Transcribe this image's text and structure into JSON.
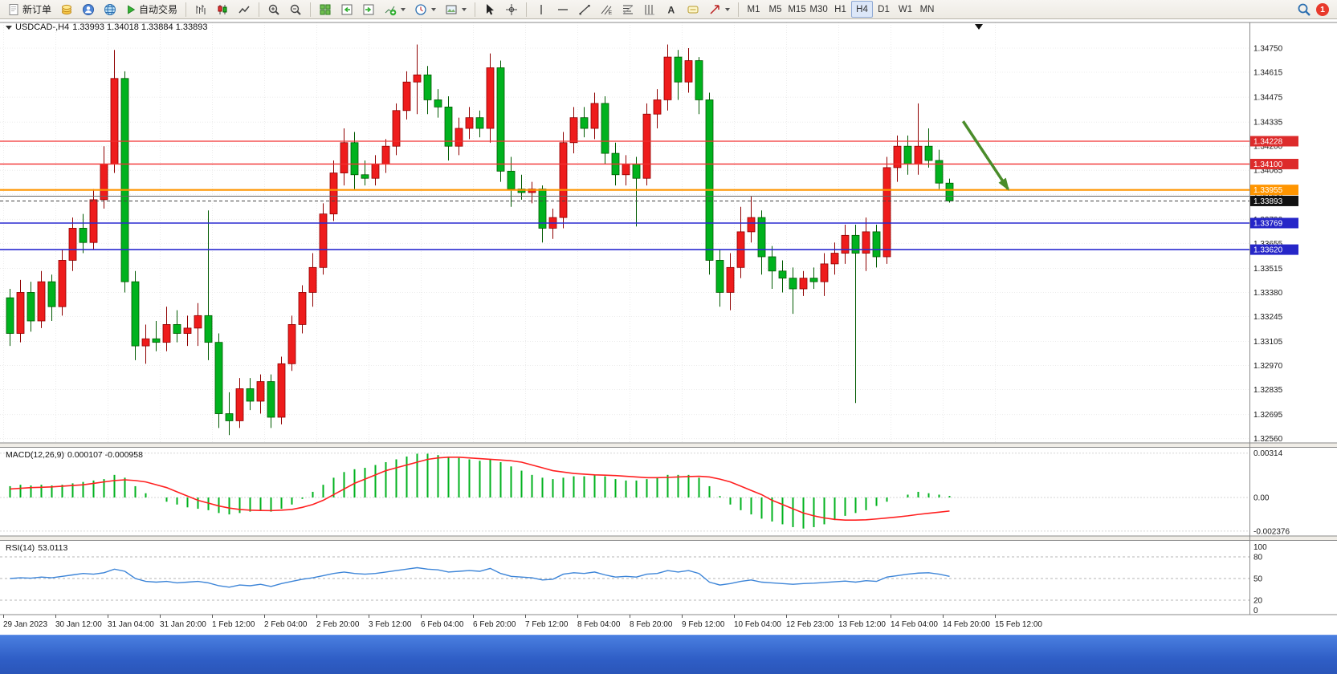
{
  "toolbar": {
    "new_order": "新订单",
    "autotrading": "自动交易",
    "timeframes": [
      "M1",
      "M5",
      "M15",
      "M30",
      "H1",
      "H4",
      "D1",
      "W1",
      "MN"
    ],
    "active_timeframe": "H4",
    "notification_badge": "1"
  },
  "chart_header": {
    "symbol_period": "USDCAD-,H4",
    "ohlc": "1.33993 1.34018 1.33884 1.33893"
  },
  "indicators": {
    "macd_label": "MACD(12,26,9)",
    "macd_values": "0.000107 -0.000958",
    "rsi_label": "RSI(14)",
    "rsi_value": "53.0113"
  },
  "chart_data": [
    {
      "type": "candlestick",
      "title": "USDCAD-,H4",
      "ohlc_quote": {
        "open": "1.33993",
        "high": "1.34018",
        "low": "1.33884",
        "close": "1.33893"
      },
      "colors": {
        "up": "#ee1c1c",
        "up_border": "#8f0000",
        "down": "#00b21e",
        "down_border": "#005a00",
        "grid": "#ececec",
        "axis_text": "#1a1a1a"
      },
      "y_axis": {
        "labels": [
          "1.34750",
          "1.34615",
          "1.34475",
          "1.34335",
          "1.34200",
          "1.34065",
          "1.33930",
          "1.33790",
          "1.33655",
          "1.33515",
          "1.33380",
          "1.33245",
          "1.33105",
          "1.32970",
          "1.32835",
          "1.32695",
          "1.32560"
        ]
      },
      "x_axis": {
        "labels": [
          "29 Jan 2023",
          "30 Jan 12:00",
          "31 Jan 04:00",
          "31 Jan 20:00",
          "1 Feb 12:00",
          "2 Feb 04:00",
          "2 Feb 20:00",
          "3 Feb 12:00",
          "6 Feb 04:00",
          "6 Feb 20:00",
          "7 Feb 12:00",
          "8 Feb 04:00",
          "8 Feb 20:00",
          "9 Feb 12:00",
          "10 Feb 04:00",
          "12 Feb 23:00",
          "13 Feb 12:00",
          "14 Feb 04:00",
          "14 Feb 20:00",
          "15 Feb 12:00"
        ]
      },
      "h_lines": [
        {
          "price": 1.34228,
          "color": "#f23030",
          "width": 1.3,
          "label": "1.34228",
          "label_bg": "#dd2b2b"
        },
        {
          "price": 1.341,
          "color": "#f23030",
          "width": 1.3,
          "label": "1.34100",
          "label_bg": "#dd2b2b"
        },
        {
          "price": 1.33955,
          "color": "#ff9500",
          "width": 2.2,
          "label": "1.33955",
          "label_bg": "#ff9500"
        },
        {
          "price": 1.3392,
          "color": "#666666",
          "width": 1,
          "label": null
        },
        {
          "price": 1.33893,
          "color": "#444444",
          "width": 1,
          "dash": "4,3",
          "label": "1.33893",
          "label_bg": "#111111"
        },
        {
          "price": 1.33769,
          "color": "#2a2ad0",
          "width": 1.6,
          "label": "1.33769",
          "label_bg": "#2626c8"
        },
        {
          "price": 1.3362,
          "color": "#2a2ad0",
          "width": 1.6,
          "label": "1.33620",
          "label_bg": "#2626c8"
        }
      ],
      "annotation_arrow": {
        "x1_index": 91.3,
        "y1_price": 1.3434,
        "x2_index": 95.6,
        "y2_price": 1.3396,
        "color": "#4a8c2a",
        "width": 3.5
      },
      "candles": [
        [
          1.3335,
          1.334,
          1.3308,
          1.3315
        ],
        [
          1.3315,
          1.3345,
          1.331,
          1.3338
        ],
        [
          1.3338,
          1.3344,
          1.3316,
          1.3322
        ],
        [
          1.3322,
          1.335,
          1.3318,
          1.3344
        ],
        [
          1.3344,
          1.3348,
          1.3322,
          1.333
        ],
        [
          1.333,
          1.3362,
          1.3325,
          1.3356
        ],
        [
          1.3356,
          1.338,
          1.335,
          1.3374
        ],
        [
          1.3374,
          1.3382,
          1.336,
          1.3366
        ],
        [
          1.3366,
          1.3396,
          1.3362,
          1.339
        ],
        [
          1.339,
          1.342,
          1.3385,
          1.341
        ],
        [
          1.341,
          1.3474,
          1.3405,
          1.3458
        ],
        [
          1.3458,
          1.3462,
          1.3338,
          1.3344
        ],
        [
          1.3344,
          1.335,
          1.33,
          1.3308
        ],
        [
          1.3308,
          1.332,
          1.3298,
          1.3312
        ],
        [
          1.3312,
          1.3322,
          1.3305,
          1.331
        ],
        [
          1.331,
          1.333,
          1.3305,
          1.332
        ],
        [
          1.332,
          1.3328,
          1.331,
          1.3315
        ],
        [
          1.3315,
          1.3325,
          1.3308,
          1.3318
        ],
        [
          1.3318,
          1.3332,
          1.3308,
          1.3325
        ],
        [
          1.3325,
          1.3384,
          1.33,
          1.331
        ],
        [
          1.331,
          1.3315,
          1.3262,
          1.327
        ],
        [
          1.327,
          1.3282,
          1.3258,
          1.3266
        ],
        [
          1.3266,
          1.329,
          1.3262,
          1.3284
        ],
        [
          1.3284,
          1.329,
          1.3272,
          1.3277
        ],
        [
          1.3277,
          1.3292,
          1.327,
          1.3288
        ],
        [
          1.3288,
          1.3292,
          1.3262,
          1.3268
        ],
        [
          1.3268,
          1.3302,
          1.3264,
          1.3298
        ],
        [
          1.3298,
          1.3325,
          1.3294,
          1.332
        ],
        [
          1.332,
          1.3342,
          1.3315,
          1.3338
        ],
        [
          1.3338,
          1.336,
          1.333,
          1.3352
        ],
        [
          1.3352,
          1.3388,
          1.3348,
          1.3382
        ],
        [
          1.3382,
          1.3412,
          1.3378,
          1.3405
        ],
        [
          1.3405,
          1.343,
          1.3398,
          1.3422
        ],
        [
          1.3422,
          1.3428,
          1.3396,
          1.3404
        ],
        [
          1.3404,
          1.3412,
          1.3398,
          1.3402
        ],
        [
          1.3402,
          1.3415,
          1.3398,
          1.341
        ],
        [
          1.341,
          1.3424,
          1.3405,
          1.342
        ],
        [
          1.342,
          1.3444,
          1.3415,
          1.344
        ],
        [
          1.344,
          1.3462,
          1.3435,
          1.3456
        ],
        [
          1.3456,
          1.3477,
          1.3438,
          1.346
        ],
        [
          1.346,
          1.3465,
          1.3438,
          1.3446
        ],
        [
          1.3446,
          1.3452,
          1.3436,
          1.3442
        ],
        [
          1.3442,
          1.3448,
          1.3412,
          1.342
        ],
        [
          1.342,
          1.3436,
          1.3415,
          1.343
        ],
        [
          1.343,
          1.3442,
          1.3424,
          1.3436
        ],
        [
          1.3436,
          1.344,
          1.3425,
          1.343
        ],
        [
          1.343,
          1.3472,
          1.3422,
          1.3464
        ],
        [
          1.3464,
          1.3468,
          1.34,
          1.3406
        ],
        [
          1.3406,
          1.3414,
          1.3386,
          1.3396
        ],
        [
          1.3396,
          1.3404,
          1.339,
          1.3394
        ],
        [
          1.3394,
          1.34,
          1.3388,
          1.3396
        ],
        [
          1.3396,
          1.3398,
          1.3366,
          1.3374
        ],
        [
          1.3374,
          1.3385,
          1.3368,
          1.338
        ],
        [
          1.338,
          1.3428,
          1.3374,
          1.3422
        ],
        [
          1.3422,
          1.3442,
          1.3416,
          1.3436
        ],
        [
          1.3436,
          1.3442,
          1.3425,
          1.343
        ],
        [
          1.343,
          1.345,
          1.3424,
          1.3444
        ],
        [
          1.3444,
          1.3448,
          1.341,
          1.3416
        ],
        [
          1.3416,
          1.3422,
          1.3398,
          1.3404
        ],
        [
          1.3404,
          1.3415,
          1.3398,
          1.341
        ],
        [
          1.341,
          1.3414,
          1.3375,
          1.3402
        ],
        [
          1.3402,
          1.3444,
          1.3398,
          1.3438
        ],
        [
          1.3438,
          1.3452,
          1.343,
          1.3446
        ],
        [
          1.3446,
          1.3477,
          1.344,
          1.347
        ],
        [
          1.347,
          1.3474,
          1.3446,
          1.3456
        ],
        [
          1.3456,
          1.3475,
          1.345,
          1.3468
        ],
        [
          1.3468,
          1.347,
          1.3438,
          1.3446
        ],
        [
          1.3446,
          1.345,
          1.3348,
          1.3356
        ],
        [
          1.3356,
          1.3362,
          1.333,
          1.3338
        ],
        [
          1.3338,
          1.336,
          1.3328,
          1.3352
        ],
        [
          1.3352,
          1.3386,
          1.3346,
          1.3372
        ],
        [
          1.3372,
          1.3392,
          1.3366,
          1.338
        ],
        [
          1.338,
          1.3384,
          1.3348,
          1.3358
        ],
        [
          1.3358,
          1.3364,
          1.334,
          1.335
        ],
        [
          1.335,
          1.3356,
          1.3338,
          1.3346
        ],
        [
          1.3346,
          1.3352,
          1.3326,
          1.334
        ],
        [
          1.334,
          1.335,
          1.3336,
          1.3346
        ],
        [
          1.3346,
          1.3352,
          1.334,
          1.3344
        ],
        [
          1.3344,
          1.336,
          1.3336,
          1.3354
        ],
        [
          1.3354,
          1.3366,
          1.3348,
          1.336
        ],
        [
          1.336,
          1.3376,
          1.3354,
          1.337
        ],
        [
          1.337,
          1.3376,
          1.3276,
          1.336
        ],
        [
          1.336,
          1.338,
          1.335,
          1.3372
        ],
        [
          1.3372,
          1.3376,
          1.3352,
          1.3358
        ],
        [
          1.3358,
          1.3414,
          1.3354,
          1.3408
        ],
        [
          1.3408,
          1.3426,
          1.34,
          1.342
        ],
        [
          1.342,
          1.3426,
          1.3404,
          1.341
        ],
        [
          1.341,
          1.3444,
          1.3404,
          1.342
        ],
        [
          1.342,
          1.343,
          1.3408,
          1.3412
        ],
        [
          1.3412,
          1.3418,
          1.3396,
          1.33993
        ],
        [
          1.33993,
          1.34018,
          1.33884,
          1.33893
        ]
      ]
    },
    {
      "type": "macd_histogram",
      "label": "MACD(12,26,9)",
      "values_text": "0.000107 -0.000958",
      "colors": {
        "histogram": "#00b21e",
        "signal": "#ff2020"
      },
      "scale": [
        {
          "text": "0.00314",
          "value": 0.00314
        },
        {
          "text": "0.00",
          "value": 0
        },
        {
          "text": "-0.002376",
          "value": -0.002376
        }
      ],
      "histogram": [
        0.0008,
        0.0009,
        0.00085,
        0.0009,
        0.00085,
        0.0009,
        0.001,
        0.0011,
        0.0012,
        0.0013,
        0.0016,
        0.0014,
        0.0008,
        0.0003,
        0.0,
        -0.0003,
        -0.0005,
        -0.0007,
        -0.0008,
        -0.0009,
        -0.0011,
        -0.0012,
        -0.0011,
        -0.001,
        -0.0009,
        -0.001,
        -0.0008,
        -0.0005,
        -0.0001,
        0.0004,
        0.0009,
        0.0014,
        0.0018,
        0.002,
        0.0021,
        0.0023,
        0.0025,
        0.0027,
        0.0029,
        0.0031,
        0.0031,
        0.003,
        0.0029,
        0.0028,
        0.0027,
        0.0026,
        0.0027,
        0.0025,
        0.0022,
        0.0019,
        0.0016,
        0.0014,
        0.0013,
        0.0014,
        0.0015,
        0.0015,
        0.0016,
        0.0015,
        0.0013,
        0.0012,
        0.0012,
        0.0013,
        0.0014,
        0.0016,
        0.0016,
        0.0016,
        0.0014,
        0.0008,
        0.0001,
        -0.0005,
        -0.0009,
        -0.0012,
        -0.0015,
        -0.0017,
        -0.0019,
        -0.0021,
        -0.0022,
        -0.0021,
        -0.0019,
        -0.0016,
        -0.0013,
        -0.0011,
        -0.0009,
        -0.0006,
        -0.0003,
        0.0,
        0.0002,
        0.0004,
        0.0003,
        0.0002,
        0.000107
      ],
      "signal": [
        0.0006,
        0.00065,
        0.0007,
        0.00072,
        0.00075,
        0.0008,
        0.00085,
        0.0009,
        0.001,
        0.0011,
        0.0012,
        0.00125,
        0.0012,
        0.0011,
        0.0009,
        0.0007,
        0.0004,
        0.0001,
        -0.0002,
        -0.0004,
        -0.0006,
        -0.00075,
        -0.00085,
        -0.0009,
        -0.00092,
        -0.00093,
        -0.0009,
        -0.00085,
        -0.0007,
        -0.0005,
        -0.0002,
        0.0002,
        0.0006,
        0.001,
        0.0013,
        0.0016,
        0.0019,
        0.0021,
        0.0023,
        0.0025,
        0.0027,
        0.0028,
        0.00285,
        0.00285,
        0.0028,
        0.00275,
        0.0027,
        0.00265,
        0.0026,
        0.0025,
        0.0023,
        0.0021,
        0.0019,
        0.0018,
        0.0017,
        0.00165,
        0.0016,
        0.00158,
        0.00155,
        0.0015,
        0.00145,
        0.0014,
        0.0014,
        0.00142,
        0.00145,
        0.00148,
        0.0015,
        0.00145,
        0.0013,
        0.0011,
        0.0008,
        0.0005,
        0.0002,
        -0.0002,
        -0.0005,
        -0.0008,
        -0.0011,
        -0.0013,
        -0.00145,
        -0.00155,
        -0.0016,
        -0.0016,
        -0.00158,
        -0.00152,
        -0.00145,
        -0.00138,
        -0.0013,
        -0.0012,
        -0.00112,
        -0.00104,
        -0.000958
      ]
    },
    {
      "type": "line",
      "label": "RSI(14)",
      "value_text": "53.0113",
      "color": "#3d85d8",
      "levels": [
        {
          "text": "100",
          "value": 100,
          "dashed": false
        },
        {
          "text": "80",
          "value": 80,
          "dashed": true
        },
        {
          "text": "50",
          "value": 50,
          "dashed": true
        },
        {
          "text": "20",
          "value": 20,
          "dashed": true
        },
        {
          "text": "0",
          "value": 0,
          "dashed": false
        }
      ],
      "values": [
        50,
        51,
        50.5,
        52,
        51,
        53,
        55,
        57,
        56,
        58,
        63,
        60,
        50,
        46,
        45,
        46,
        44,
        45,
        46,
        44,
        40,
        38,
        41,
        40,
        42,
        39,
        43,
        46,
        49,
        51,
        54,
        57,
        59,
        57,
        56,
        57,
        59,
        61,
        63,
        65,
        63,
        62,
        59,
        60,
        61,
        60,
        64,
        57,
        53,
        52,
        51,
        48,
        49,
        56,
        58,
        57,
        59,
        55,
        52,
        53,
        52,
        56,
        57,
        61,
        59,
        61,
        57,
        45,
        41,
        43,
        46,
        48,
        45,
        44,
        43,
        42,
        43,
        43.5,
        44.5,
        45.5,
        46.5,
        45,
        47,
        46,
        52,
        54,
        56,
        57.5,
        58,
        56,
        53.01
      ]
    }
  ]
}
